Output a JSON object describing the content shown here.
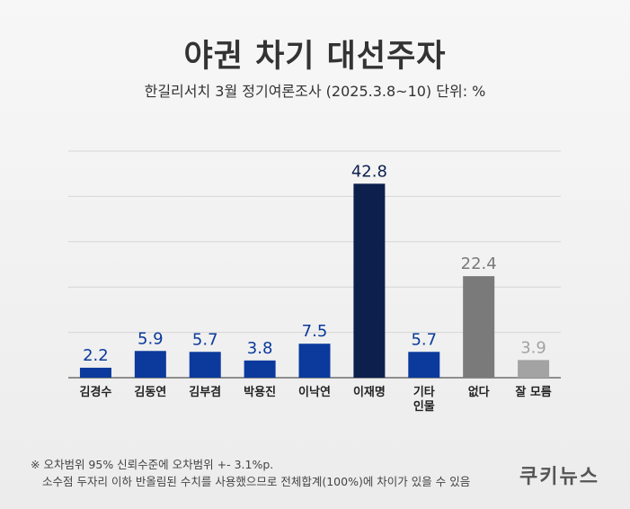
{
  "title": "야권 차기 대선주자",
  "subtitle": "한길리서치 3월 정기여론조사 (2025.3.8~10) 단위: %",
  "chart_data": {
    "type": "bar",
    "title": "야권 차기 대선주자",
    "subtitle": "한길리서치 3월 정기여론조사 (2025.3.8~10) 단위: %",
    "unit": "%",
    "categories": [
      "김경수",
      "김동연",
      "김부겸",
      "박용진",
      "이낙연",
      "이재명",
      "기타\n인물",
      "없다",
      "잘 모름"
    ],
    "values": [
      2.2,
      5.9,
      5.7,
      3.8,
      7.5,
      42.8,
      5.7,
      22.4,
      3.9
    ],
    "colors": [
      "#0b3a9c",
      "#0b3a9c",
      "#0b3a9c",
      "#0b3a9c",
      "#0b3a9c",
      "#0d1f4d",
      "#0b3a9c",
      "#7a7a7a",
      "#a3a3a3"
    ],
    "label_colors": [
      "#0b3a9c",
      "#0b3a9c",
      "#0b3a9c",
      "#0b3a9c",
      "#0b3a9c",
      "#0d1f4d",
      "#0b3a9c",
      "#7a7a7a",
      "#a3a3a3"
    ],
    "ylim": [
      0,
      50
    ],
    "grid": true,
    "legend": "none"
  },
  "footnote": {
    "line1": "※ 오차범위 95% 신뢰수준에 오차범위 +- 3.1%p.",
    "line2": "소수점 두자리 이하 반올림된 수치를 사용했으므로 전체합계(100%)에 차이가 있을 수 있음"
  },
  "brand": "쿠키뉴스"
}
